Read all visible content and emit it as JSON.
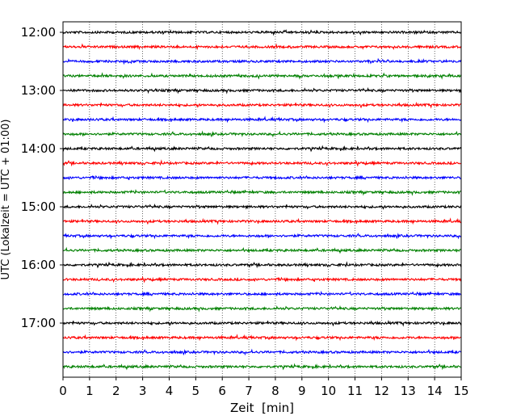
{
  "chart_data": {
    "type": "line",
    "title": "",
    "xlabel": "Zeit  [min]",
    "ylabel": "UTC (Lokalzeit = UTC + 01:00)",
    "xlim": [
      0,
      15
    ],
    "xticks": [
      0,
      1,
      2,
      3,
      4,
      5,
      6,
      7,
      8,
      9,
      10,
      11,
      12,
      13,
      14,
      15
    ],
    "grid": "vertical dotted lines at each minute",
    "trace_interval_min": 15,
    "trace_colors": [
      "#000000",
      "#ff0000",
      "#0000ff",
      "#008000"
    ],
    "yticks": [
      {
        "label": "12:00",
        "trace": 0
      },
      {
        "label": "13:00",
        "trace": 4
      },
      {
        "label": "14:00",
        "trace": 8
      },
      {
        "label": "15:00",
        "trace": 12
      },
      {
        "label": "16:00",
        "trace": 16
      },
      {
        "label": "17:00",
        "trace": 20
      }
    ],
    "series": [
      {
        "start": "12:00"
      },
      {
        "start": "12:15"
      },
      {
        "start": "12:30"
      },
      {
        "start": "12:45"
      },
      {
        "start": "13:00"
      },
      {
        "start": "13:15"
      },
      {
        "start": "13:30"
      },
      {
        "start": "13:45"
      },
      {
        "start": "14:00"
      },
      {
        "start": "14:15"
      },
      {
        "start": "14:30"
      },
      {
        "start": "14:45"
      },
      {
        "start": "15:00"
      },
      {
        "start": "15:15"
      },
      {
        "start": "15:30"
      },
      {
        "start": "15:45"
      },
      {
        "start": "16:00"
      },
      {
        "start": "16:15"
      },
      {
        "start": "16:30"
      },
      {
        "start": "16:45"
      },
      {
        "start": "17:00"
      },
      {
        "start": "17:15"
      },
      {
        "start": "17:30"
      },
      {
        "start": "17:45"
      }
    ]
  }
}
